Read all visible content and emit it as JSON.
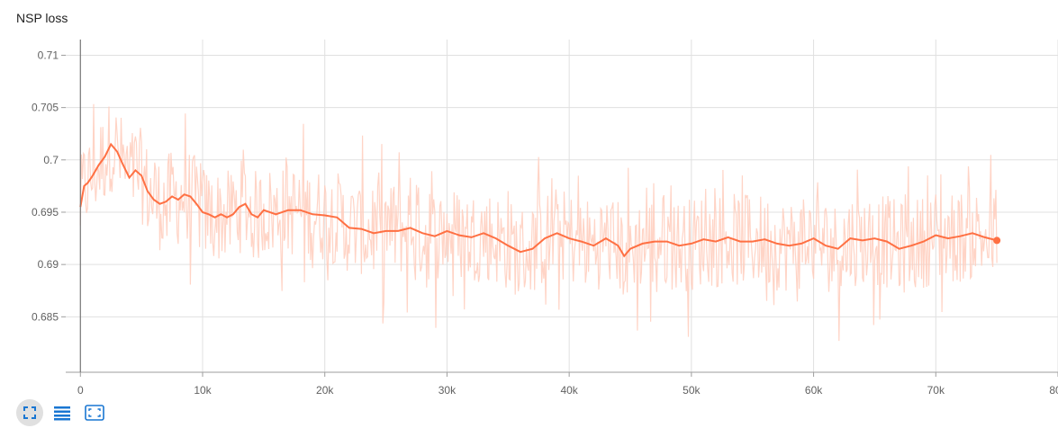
{
  "chart_data": {
    "type": "line",
    "title": "NSP loss",
    "xlabel": "",
    "ylabel": "",
    "xlim": [
      -1200,
      80000
    ],
    "ylim": [
      0.6797,
      0.7115
    ],
    "x_ticks": [
      0,
      10000,
      20000,
      30000,
      40000,
      50000,
      60000,
      70000,
      80000
    ],
    "x_tick_labels": [
      "0",
      "10k",
      "20k",
      "30k",
      "40k",
      "50k",
      "60k",
      "70k",
      "80k"
    ],
    "y_ticks": [
      0.685,
      0.69,
      0.695,
      0.7,
      0.705,
      0.71
    ],
    "y_tick_labels": [
      "0.685",
      "0.69",
      "0.695",
      "0.7",
      "0.705",
      "0.71"
    ],
    "grid": true,
    "colors": {
      "smoothed": "#ff7043",
      "raw": "#ffccbc",
      "grid": "#e0e0e0",
      "axis": "#9e9e9e"
    },
    "series": [
      {
        "name": "smoothed",
        "x": [
          0,
          300,
          600,
          1000,
          1500,
          2000,
          2500,
          3000,
          3500,
          4000,
          4500,
          5000,
          5500,
          6000,
          6500,
          7000,
          7500,
          8000,
          8500,
          9000,
          9500,
          10000,
          10500,
          11000,
          11500,
          12000,
          12500,
          13000,
          13500,
          14000,
          14500,
          15000,
          16000,
          17000,
          18000,
          19000,
          20000,
          21000,
          22000,
          23000,
          24000,
          25000,
          26000,
          27000,
          28000,
          29000,
          30000,
          31000,
          32000,
          33000,
          34000,
          35000,
          36000,
          37000,
          38000,
          39000,
          40000,
          41000,
          42000,
          43000,
          44000,
          44500,
          45000,
          46000,
          47000,
          48000,
          49000,
          50000,
          51000,
          52000,
          53000,
          54000,
          55000,
          56000,
          57000,
          58000,
          59000,
          60000,
          61000,
          62000,
          63000,
          64000,
          65000,
          66000,
          67000,
          68000,
          69000,
          70000,
          71000,
          72000,
          73000,
          74000,
          75000
        ],
        "y": [
          0.6955,
          0.6975,
          0.6978,
          0.6985,
          0.6995,
          0.7003,
          0.7015,
          0.7008,
          0.6995,
          0.6983,
          0.699,
          0.6985,
          0.697,
          0.6962,
          0.6958,
          0.696,
          0.6965,
          0.6962,
          0.6967,
          0.6965,
          0.6958,
          0.695,
          0.6948,
          0.6945,
          0.6948,
          0.6945,
          0.6948,
          0.6955,
          0.6958,
          0.6948,
          0.6945,
          0.6952,
          0.6948,
          0.6952,
          0.6952,
          0.6948,
          0.6947,
          0.6945,
          0.6935,
          0.6934,
          0.693,
          0.6932,
          0.6932,
          0.6935,
          0.693,
          0.6927,
          0.6932,
          0.6928,
          0.6926,
          0.693,
          0.6925,
          0.6918,
          0.6912,
          0.6915,
          0.6925,
          0.693,
          0.6925,
          0.6922,
          0.6918,
          0.6925,
          0.6918,
          0.6908,
          0.6915,
          0.692,
          0.6922,
          0.6922,
          0.6918,
          0.692,
          0.6924,
          0.6922,
          0.6926,
          0.6922,
          0.6922,
          0.6924,
          0.692,
          0.6918,
          0.692,
          0.6925,
          0.6918,
          0.6915,
          0.6925,
          0.6923,
          0.6925,
          0.6922,
          0.6915,
          0.6918,
          0.6922,
          0.6928,
          0.6925,
          0.6927,
          0.693,
          0.6926,
          0.6923
        ]
      }
    ],
    "raw_series": {
      "name": "raw",
      "x_range": [
        0,
        75000
      ],
      "y_band": [
        0.68,
        0.711
      ],
      "typical_y_band": [
        0.686,
        0.699
      ]
    }
  },
  "toolbar": {
    "buttons": [
      {
        "icon": "fit-domain-icon"
      },
      {
        "icon": "log-scale-icon"
      },
      {
        "icon": "expand-icon"
      }
    ]
  }
}
